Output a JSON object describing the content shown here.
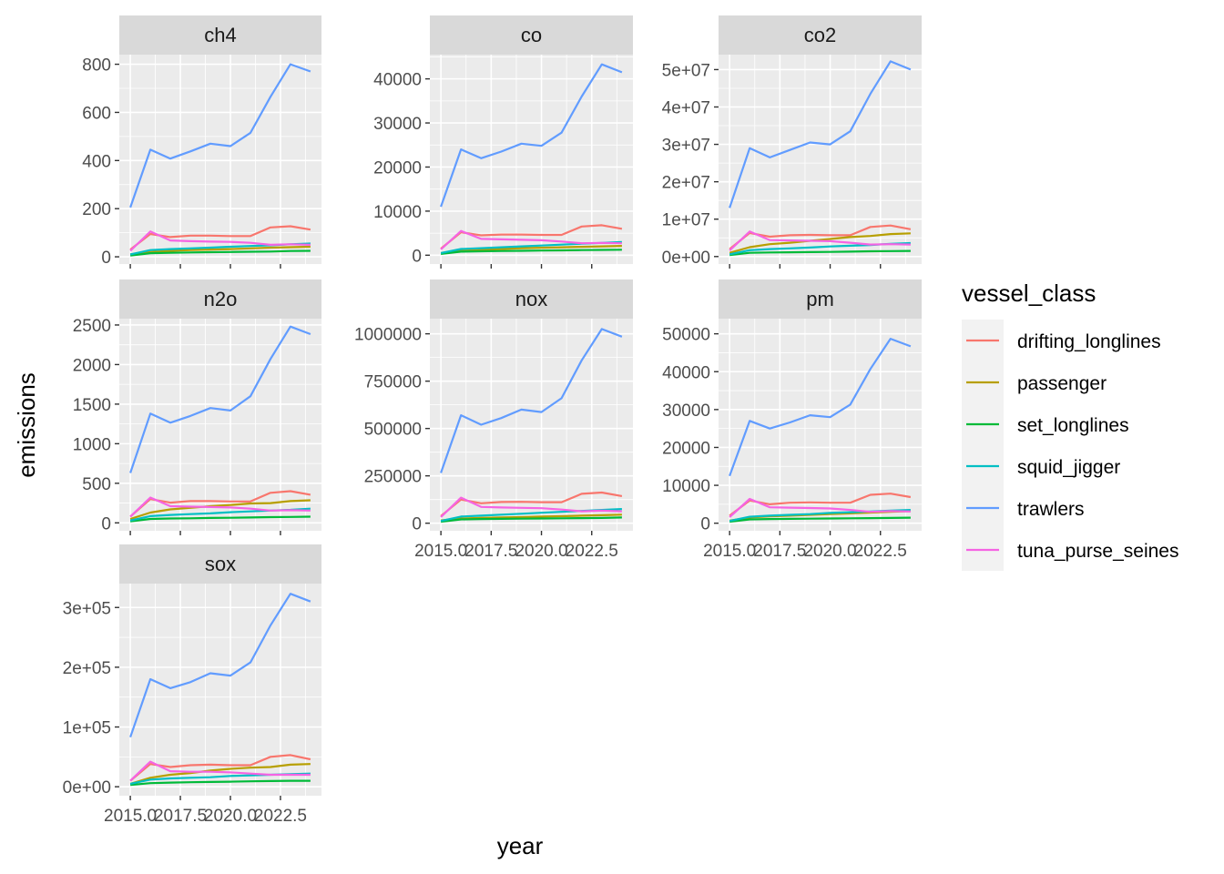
{
  "chart_data": {
    "type": "line",
    "xlabel": "year",
    "ylabel": "emissions",
    "x": [
      2015,
      2016,
      2017,
      2018,
      2019,
      2020,
      2021,
      2022,
      2023,
      2024
    ],
    "x_ticks": [
      2015.0,
      2017.5,
      2020.0,
      2022.5
    ],
    "x_tick_labels": [
      "2015.0",
      "2017.5",
      "2020.0",
      "2022.5"
    ],
    "grid": true,
    "legend": {
      "title": "vessel_class",
      "placement": "right",
      "entries": [
        {
          "name": "drifting_longlines",
          "color": "#F8766D"
        },
        {
          "name": "passenger",
          "color": "#B79F00"
        },
        {
          "name": "set_longlines",
          "color": "#00BA38"
        },
        {
          "name": "squid_jigger",
          "color": "#00BFC4"
        },
        {
          "name": "trawlers",
          "color": "#619CFF"
        },
        {
          "name": "tuna_purse_seines",
          "color": "#F564E3"
        }
      ]
    },
    "panels": [
      {
        "title": "ch4",
        "ylim": [
          -30,
          840
        ],
        "y_ticks": [
          0,
          200,
          400,
          600,
          800
        ],
        "y_tick_labels": [
          "0",
          "200",
          "400",
          "600",
          "800"
        ],
        "series": [
          {
            "name": "drifting_longlines",
            "values": [
              30,
              95,
              82,
              88,
              88,
              86,
              86,
              122,
              127,
              113
            ]
          },
          {
            "name": "passenger",
            "values": [
              10,
              20,
              25,
              28,
              30,
              32,
              35,
              38,
              40,
              42
            ]
          },
          {
            "name": "set_longlines",
            "values": [
              5,
              15,
              17,
              18,
              19,
              20,
              21,
              22,
              24,
              25
            ]
          },
          {
            "name": "squid_jigger",
            "values": [
              10,
              28,
              32,
              35,
              38,
              42,
              45,
              48,
              52,
              55
            ]
          },
          {
            "name": "trawlers",
            "values": [
              205,
              445,
              408,
              438,
              470,
              460,
              515,
              665,
              800,
              770
            ]
          },
          {
            "name": "tuna_purse_seines",
            "values": [
              25,
              105,
              68,
              65,
              63,
              62,
              58,
              50,
              52,
              50
            ]
          }
        ]
      },
      {
        "title": "co",
        "ylim": [
          -2000,
          45500
        ],
        "y_ticks": [
          0,
          10000,
          20000,
          30000,
          40000
        ],
        "y_tick_labels": [
          "0",
          "10000",
          "20000",
          "30000",
          "40000"
        ],
        "series": [
          {
            "name": "drifting_longlines",
            "values": [
              1500,
              5200,
              4500,
              4700,
              4700,
              4600,
              4600,
              6500,
              6800,
              6000
            ]
          },
          {
            "name": "passenger",
            "values": [
              500,
              1000,
              1200,
              1400,
              1600,
              1700,
              1800,
              1900,
              2000,
              2100
            ]
          },
          {
            "name": "set_longlines",
            "values": [
              300,
              800,
              900,
              950,
              1000,
              1050,
              1100,
              1150,
              1200,
              1250
            ]
          },
          {
            "name": "squid_jigger",
            "values": [
              500,
              1400,
              1600,
              1800,
              2000,
              2200,
              2400,
              2600,
              2800,
              3000
            ]
          },
          {
            "name": "trawlers",
            "values": [
              11000,
              24000,
              22000,
              23500,
              25300,
              24800,
              27800,
              36000,
              43300,
              41500
            ]
          },
          {
            "name": "tuna_purse_seines",
            "values": [
              1300,
              5500,
              3700,
              3600,
              3500,
              3400,
              3100,
              2700,
              2800,
              2700
            ]
          }
        ]
      },
      {
        "title": "co2",
        "ylim": [
          -2000000,
          54000000
        ],
        "y_ticks": [
          0,
          10000000,
          20000000,
          30000000,
          40000000,
          50000000
        ],
        "y_tick_labels": [
          "0e+00",
          "1e+07",
          "2e+07",
          "3e+07",
          "4e+07",
          "5e+07"
        ],
        "series": [
          {
            "name": "drifting_longlines",
            "values": [
              2000000,
              6300000,
              5300000,
              5700000,
              5800000,
              5700000,
              5700000,
              7900000,
              8300000,
              7300000
            ]
          },
          {
            "name": "passenger",
            "values": [
              1000000,
              2500000,
              3300000,
              3700000,
              4200000,
              4700000,
              5200000,
              5500000,
              6000000,
              6200000
            ]
          },
          {
            "name": "set_longlines",
            "values": [
              400000,
              1000000,
              1100000,
              1150000,
              1200000,
              1250000,
              1300000,
              1400000,
              1450000,
              1500000
            ]
          },
          {
            "name": "squid_jigger",
            "values": [
              600000,
              1700000,
              2000000,
              2200000,
              2400000,
              2700000,
              2900000,
              3100000,
              3400000,
              3600000
            ]
          },
          {
            "name": "trawlers",
            "values": [
              13000000,
              29000000,
              26500000,
              28500000,
              30500000,
              30000000,
              33500000,
              43500000,
              52200000,
              50000000
            ]
          },
          {
            "name": "tuna_purse_seines",
            "values": [
              1600000,
              6700000,
              4400000,
              4300000,
              4200000,
              4100000,
              3700000,
              3200000,
              3300000,
              3200000
            ]
          }
        ]
      },
      {
        "title": "n2o",
        "ylim": [
          -100,
          2580
        ],
        "y_ticks": [
          0,
          500,
          1000,
          1500,
          2000,
          2500
        ],
        "y_tick_labels": [
          "0",
          "500",
          "1000",
          "1500",
          "2000",
          "2500"
        ],
        "series": [
          {
            "name": "drifting_longlines",
            "values": [
              80,
              300,
              255,
              275,
              275,
              270,
              270,
              380,
              400,
              355
            ]
          },
          {
            "name": "passenger",
            "values": [
              50,
              130,
              170,
              190,
              210,
              225,
              245,
              250,
              275,
              285
            ]
          },
          {
            "name": "set_longlines",
            "values": [
              20,
              50,
              55,
              58,
              62,
              65,
              68,
              72,
              75,
              78
            ]
          },
          {
            "name": "squid_jigger",
            "values": [
              30,
              85,
              100,
              110,
              120,
              135,
              145,
              155,
              165,
              180
            ]
          },
          {
            "name": "trawlers",
            "values": [
              630,
              1380,
              1265,
              1350,
              1450,
              1420,
              1600,
              2070,
              2480,
              2385
            ]
          },
          {
            "name": "tuna_purse_seines",
            "values": [
              80,
              320,
              210,
              205,
              200,
              195,
              180,
              155,
              160,
              155
            ]
          }
        ]
      },
      {
        "title": "nox",
        "ylim": [
          -40000,
          1080000
        ],
        "y_ticks": [
          0,
          250000,
          500000,
          750000,
          1000000
        ],
        "y_tick_labels": [
          "0",
          "250000",
          "500000",
          "750000",
          "1000000"
        ],
        "series": [
          {
            "name": "drifting_longlines",
            "values": [
              38000,
              125000,
              105000,
              112000,
              113000,
              111000,
              111000,
              155000,
              162000,
              143000
            ]
          },
          {
            "name": "passenger",
            "values": [
              15000,
              25000,
              28000,
              30000,
              32000,
              35000,
              37000,
              40000,
              42000,
              45000
            ]
          },
          {
            "name": "set_longlines",
            "values": [
              8000,
              20000,
              22000,
              23000,
              24000,
              25000,
              26000,
              27000,
              28000,
              30000
            ]
          },
          {
            "name": "squid_jigger",
            "values": [
              12000,
              35000,
              40000,
              45000,
              50000,
              55000,
              60000,
              65000,
              70000,
              75000
            ]
          },
          {
            "name": "trawlers",
            "values": [
              265000,
              570000,
              520000,
              555000,
              600000,
              587000,
              660000,
              860000,
              1025000,
              985000
            ]
          },
          {
            "name": "tuna_purse_seines",
            "values": [
              32000,
              135000,
              86000,
              83000,
              81000,
              79000,
              72000,
              63000,
              66000,
              63000
            ]
          }
        ]
      },
      {
        "title": "pm",
        "ylim": [
          -2000,
          54000
        ],
        "y_ticks": [
          0,
          10000,
          20000,
          30000,
          40000,
          50000
        ],
        "y_tick_labels": [
          "0",
          "10000",
          "20000",
          "30000",
          "40000",
          "50000"
        ],
        "series": [
          {
            "name": "drifting_longlines",
            "values": [
              2000,
              6000,
              5000,
              5400,
              5500,
              5400,
              5400,
              7500,
              7800,
              6900
            ]
          },
          {
            "name": "passenger",
            "values": [
              700,
              1500,
              1800,
              2000,
              2200,
              2400,
              2600,
              2800,
              3000,
              3200
            ]
          },
          {
            "name": "set_longlines",
            "values": [
              400,
              1000,
              1100,
              1150,
              1200,
              1250,
              1300,
              1350,
              1400,
              1450
            ]
          },
          {
            "name": "squid_jigger",
            "values": [
              600,
              1700,
              2000,
              2200,
              2400,
              2700,
              2900,
              3100,
              3300,
              3500
            ]
          },
          {
            "name": "trawlers",
            "values": [
              12500,
              27000,
              25000,
              26600,
              28500,
              28000,
              31300,
              40700,
              48700,
              46700
            ]
          },
          {
            "name": "tuna_purse_seines",
            "values": [
              1600,
              6400,
              4200,
              4100,
              4000,
              3900,
              3500,
              3000,
              3200,
              3100
            ]
          }
        ]
      },
      {
        "title": "sox",
        "ylim": [
          -15000,
          340000
        ],
        "y_ticks": [
          0,
          100000,
          200000,
          300000
        ],
        "y_tick_labels": [
          "0e+00",
          "1e+05",
          "2e+05",
          "3e+05"
        ],
        "series": [
          {
            "name": "drifting_longlines",
            "values": [
              10000,
              38000,
              33000,
              36000,
              37000,
              36000,
              36000,
              50000,
              53000,
              46000
            ]
          },
          {
            "name": "passenger",
            "values": [
              5000,
              15000,
              20000,
              23000,
              27000,
              30000,
              32000,
              33000,
              37000,
              38000
            ]
          },
          {
            "name": "set_longlines",
            "values": [
              3000,
              6000,
              7000,
              7500,
              8000,
              8500,
              9000,
              9500,
              10000,
              10000
            ]
          },
          {
            "name": "squid_jigger",
            "values": [
              5000,
              12000,
              14000,
              15000,
              16000,
              18000,
              19000,
              20000,
              21000,
              22000
            ]
          },
          {
            "name": "trawlers",
            "values": [
              83000,
              180000,
              165000,
              175000,
              190000,
              186000,
              208000,
              270000,
              323000,
              310000
            ]
          },
          {
            "name": "tuna_purse_seines",
            "values": [
              10000,
              42000,
              26000,
              25000,
              25000,
              24000,
              22000,
              20000,
              20000,
              20000
            ]
          }
        ]
      }
    ]
  }
}
